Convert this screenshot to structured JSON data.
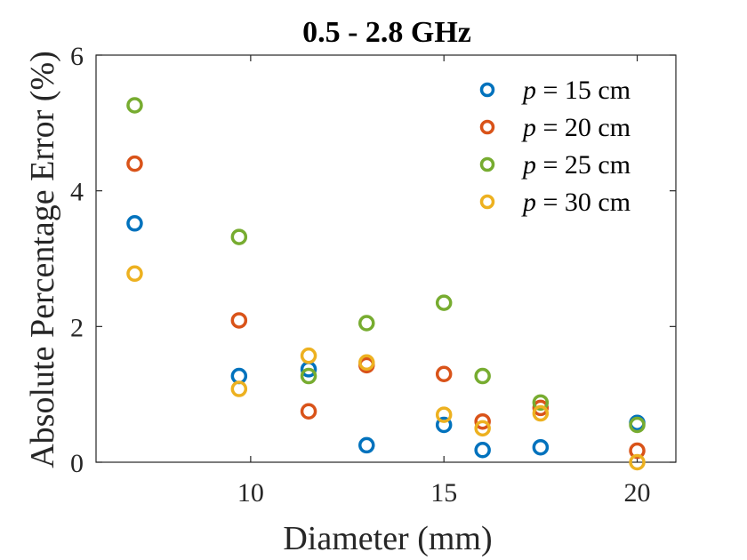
{
  "chart_data": {
    "type": "scatter",
    "title": "0.5 - 2.8 GHz",
    "xlabel": "Diameter (mm)",
    "ylabel": "Absolute Percentage Error (%)",
    "xlim": [
      6.0,
      21.0
    ],
    "ylim": [
      0,
      6
    ],
    "xticks": [
      10,
      15,
      20
    ],
    "yticks": [
      0,
      2,
      4,
      6
    ],
    "x": [
      7,
      9.7,
      11.5,
      13,
      15,
      16,
      17.5,
      20
    ],
    "legend_position": "top-right",
    "series": [
      {
        "name": "p = 15 cm",
        "var": "p",
        "rest": " = 15 cm",
        "color": "#0072BD",
        "values": [
          3.52,
          1.27,
          1.37,
          0.25,
          0.55,
          0.18,
          0.22,
          0.58
        ]
      },
      {
        "name": "p = 20 cm",
        "var": "p",
        "rest": " = 20 cm",
        "color": "#D95319",
        "values": [
          4.4,
          2.09,
          0.75,
          1.43,
          1.3,
          0.6,
          0.8,
          0.17
        ]
      },
      {
        "name": "p = 25 cm",
        "var": "p",
        "rest": " = 25 cm",
        "color": "#77AC30",
        "values": [
          5.26,
          3.32,
          1.27,
          2.05,
          2.35,
          1.27,
          0.88,
          0.55
        ]
      },
      {
        "name": "p = 30 cm",
        "var": "p",
        "rest": " = 30 cm",
        "color": "#EDB120",
        "values": [
          2.78,
          1.08,
          1.57,
          1.47,
          0.7,
          0.5,
          0.72,
          0.0
        ]
      }
    ]
  }
}
